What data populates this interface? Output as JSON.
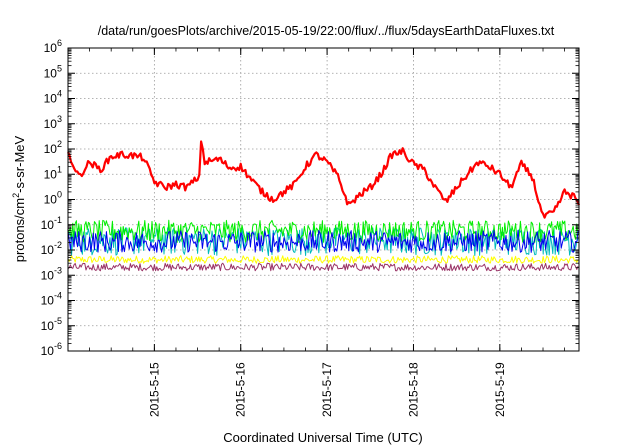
{
  "chart_data": {
    "type": "line",
    "title": "/data/run/goesPlots/archive/2015-05-19/22:00/flux/../flux/5daysEarthDataFluxes.txt",
    "xlabel": "Coordinated Universal Time (UTC)",
    "ylabel": "protons/cm²-s-sr-MeV",
    "ylabel_parts": {
      "pre": "protons/cm",
      "sup": "2",
      "post": "-s-sr-MeV"
    },
    "yscale": "log",
    "ylim": [
      1e-06,
      1000000.0
    ],
    "xlim": [
      "2015-05-14 00:00",
      "2015-05-19 22:00"
    ],
    "x_ticks": [
      "2015-5-15",
      "2015-5-16",
      "2015-5-17",
      "2015-5-18",
      "2015-5-19"
    ],
    "y_ticks": [
      {
        "base": "10",
        "exp": "-6"
      },
      {
        "base": "10",
        "exp": "-5"
      },
      {
        "base": "10",
        "exp": "-4"
      },
      {
        "base": "10",
        "exp": "-3"
      },
      {
        "base": "10",
        "exp": "-2"
      },
      {
        "base": "10",
        "exp": "-1"
      },
      {
        "base": "10",
        "exp": "0"
      },
      {
        "base": "10",
        "exp": "1"
      },
      {
        "base": "10",
        "exp": "2"
      },
      {
        "base": "10",
        "exp": "3"
      },
      {
        "base": "10",
        "exp": "4"
      },
      {
        "base": "10",
        "exp": "5"
      },
      {
        "base": "10",
        "exp": "6"
      }
    ],
    "grid": true,
    "legend": "none",
    "series": [
      {
        "color": "#ff0000",
        "linewidth": 2.2,
        "x": [
          "2015-05-14 00:00",
          "2015-05-14 03:00",
          "2015-05-14 06:00",
          "2015-05-14 09:00",
          "2015-05-14 12:00",
          "2015-05-14 15:00",
          "2015-05-14 18:00",
          "2015-05-14 21:00",
          "2015-05-15 00:00",
          "2015-05-15 03:00",
          "2015-05-15 06:00",
          "2015-05-15 09:00",
          "2015-05-15 12:00",
          "2015-05-15 13:00",
          "2015-05-15 14:00",
          "2015-05-15 18:00",
          "2015-05-15 21:00",
          "2015-05-16 00:00",
          "2015-05-16 03:00",
          "2015-05-16 06:00",
          "2015-05-16 09:00",
          "2015-05-16 12:00",
          "2015-05-16 15:00",
          "2015-05-16 18:00",
          "2015-05-16 21:00",
          "2015-05-17 00:00",
          "2015-05-17 03:00",
          "2015-05-17 06:00",
          "2015-05-17 09:00",
          "2015-05-17 12:00",
          "2015-05-17 15:00",
          "2015-05-17 18:00",
          "2015-05-17 21:00",
          "2015-05-18 00:00",
          "2015-05-18 03:00",
          "2015-05-18 06:00",
          "2015-05-18 09:00",
          "2015-05-18 12:00",
          "2015-05-18 15:00",
          "2015-05-18 18:00",
          "2015-05-18 21:00",
          "2015-05-19 00:00",
          "2015-05-19 03:00",
          "2015-05-19 06:00",
          "2015-05-19 09:00",
          "2015-05-19 12:00",
          "2015-05-19 15:00",
          "2015-05-19 18:00",
          "2015-05-19 21:00",
          "2015-05-19 22:00"
        ],
        "y": [
          70,
          8,
          30,
          15,
          50,
          60,
          55,
          45,
          5,
          3,
          4,
          3,
          7,
          250,
          30,
          40,
          18,
          20,
          6,
          2,
          1,
          2,
          4,
          20,
          60,
          30,
          8,
          0.6,
          1.5,
          3,
          10,
          60,
          80,
          25,
          15,
          3,
          0.8,
          3,
          10,
          30,
          20,
          10,
          3,
          25,
          8,
          0.2,
          0.3,
          2,
          1.2,
          0.6
        ]
      },
      {
        "color": "#00ee00",
        "linewidth": 1,
        "x": [
          "2015-05-14 00:00",
          "2015-05-19 22:00"
        ],
        "y": [
          0.06,
          0.06
        ],
        "y_range": [
          0.02,
          0.15
        ]
      },
      {
        "color": "#00bbbb",
        "linewidth": 1,
        "x": [
          "2015-05-14 00:00",
          "2015-05-19 22:00"
        ],
        "y": [
          0.03,
          0.03
        ],
        "y_range": [
          0.006,
          0.08
        ]
      },
      {
        "color": "#0000ee",
        "linewidth": 1,
        "x": [
          "2015-05-14 00:00",
          "2015-05-19 22:00"
        ],
        "y": [
          0.02,
          0.02
        ],
        "y_range": [
          0.008,
          0.06
        ]
      },
      {
        "color": "#ffff00",
        "linewidth": 1,
        "x": [
          "2015-05-14 00:00",
          "2015-05-19 22:00"
        ],
        "y": [
          0.004,
          0.004
        ],
        "y_range": [
          0.003,
          0.006
        ]
      },
      {
        "color": "#993366",
        "linewidth": 1,
        "x": [
          "2015-05-14 00:00",
          "2015-05-19 22:00"
        ],
        "y": [
          0.002,
          0.002
        ],
        "y_range": [
          0.0015,
          0.003
        ]
      }
    ]
  }
}
